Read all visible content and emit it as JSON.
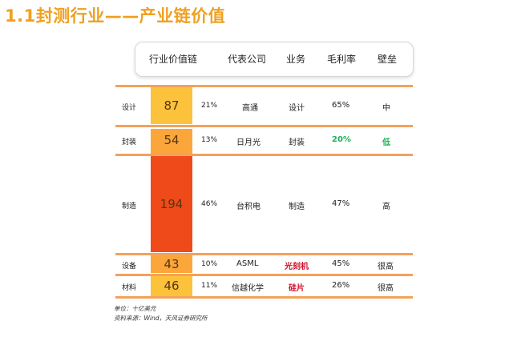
{
  "title": "1.1封测行业——产业链价值",
  "headers": [
    "行业价值链",
    "代表公司",
    "业务",
    "毛利率",
    "壁垒"
  ],
  "rows": [
    {
      "cat": "设计",
      "value": "87",
      "pct": "21%",
      "company": "高通",
      "business": "设计",
      "margin": "65%",
      "barrier": "中"
    },
    {
      "cat": "封装",
      "value": "54",
      "pct": "13%",
      "company": "日月光",
      "business": "封装",
      "margin": "20%",
      "barrier": "低"
    },
    {
      "cat": "制造",
      "value": "194",
      "pct": "46%",
      "company": "台积电",
      "business": "制造",
      "margin": "47%",
      "barrier": "高"
    },
    {
      "cat": "设备",
      "value": "43",
      "pct": "10%",
      "company": "ASML",
      "business": "光刻机",
      "margin": "45%",
      "barrier": "很高"
    },
    {
      "cat": "材料",
      "value": "46",
      "pct": "11%",
      "company": "信越化学",
      "business": "硅片",
      "margin": "26%",
      "barrier": "很高"
    }
  ],
  "colors": {
    "title": "#f0a020",
    "rule": "#f4a15a",
    "bar_design": "#fcc23c",
    "bar_package": "#fba63a",
    "bar_manufacture": "#ef4a1a",
    "bar_equipment": "#fba63a",
    "bar_material": "#fcc23c",
    "green": "#1db05a",
    "red": "#d0102a"
  },
  "footer": {
    "unit": "单位：十亿美元",
    "source": "资料来源：Wind，天风证券研究所"
  }
}
